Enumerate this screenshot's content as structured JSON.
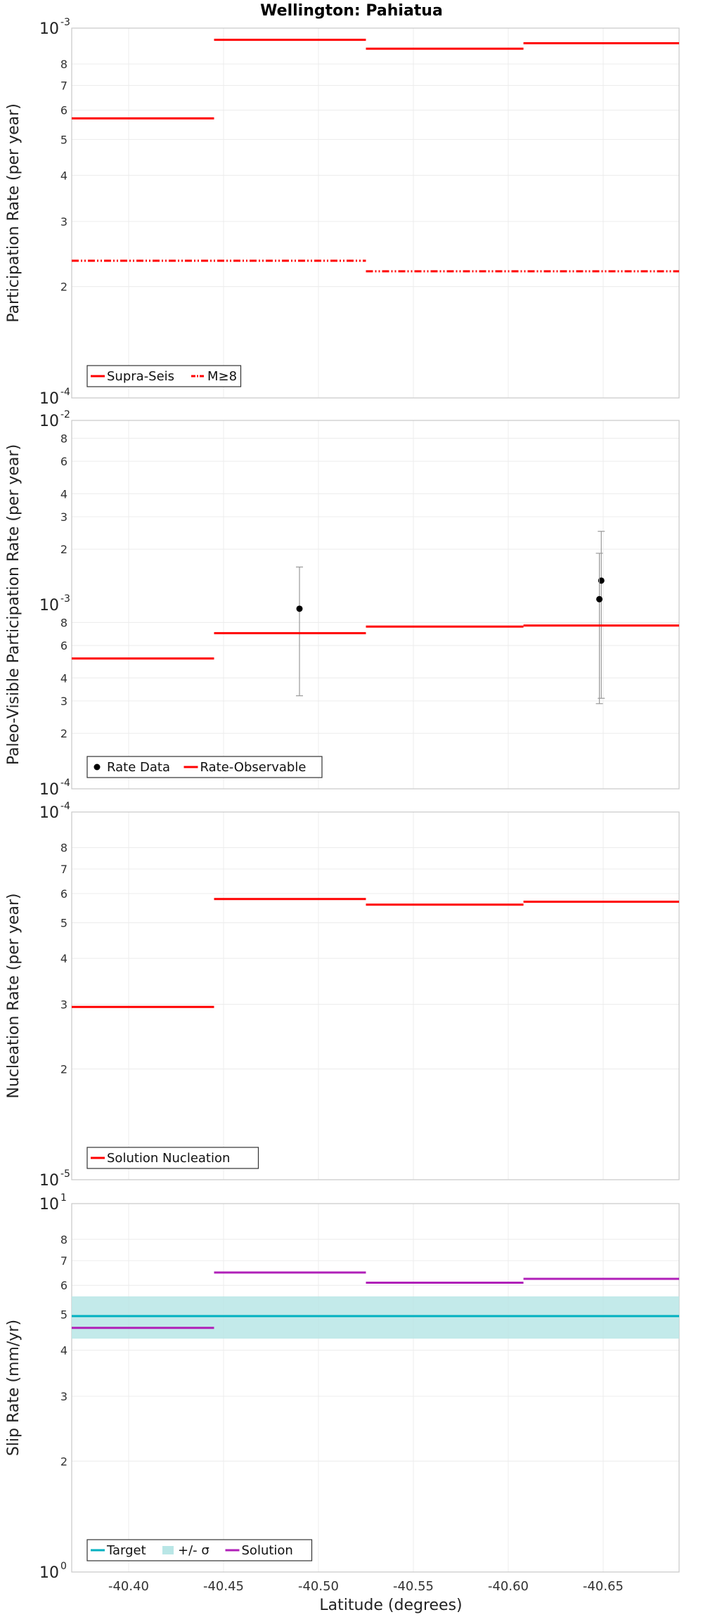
{
  "title": "Wellington: Pahiatua",
  "xlabel": "Latitude (degrees)",
  "colors": {
    "red": "#ff0000",
    "teal": "#00b0c0",
    "band": "#b9e6e6",
    "magenta": "#b020b8",
    "black": "#000000",
    "errorbar": "#999999"
  },
  "chart_data": [
    {
      "type": "line",
      "ylabel": "Participation Rate (per year)",
      "yscale": "log",
      "ylim": [
        0.0001,
        0.001
      ],
      "xlim": [
        -40.37,
        -40.69
      ],
      "xticks": [
        -40.4,
        -40.45,
        -40.5,
        -40.55,
        -40.6,
        -40.65
      ],
      "xtick_labels": [
        "-40.40",
        "-40.45",
        "-40.50",
        "-40.55",
        "-40.60",
        "-40.65"
      ],
      "ytick_major": [
        {
          "base": "10",
          "exp": "-3",
          "value": 0.001
        },
        {
          "base": "10",
          "exp": "-4",
          "value": 0.0001
        }
      ],
      "ytick_minor": [
        2,
        3,
        4,
        5,
        6,
        7,
        8
      ],
      "grid": true,
      "legend_position": "bottom-left",
      "series": [
        {
          "name": "Supra-Seis",
          "style": "solid",
          "color": "#ff0000",
          "segments": [
            {
              "x0": -40.37,
              "x1": -40.445,
              "y": 0.00057
            },
            {
              "x0": -40.445,
              "x1": -40.525,
              "y": 0.00093
            },
            {
              "x0": -40.525,
              "x1": -40.608,
              "y": 0.00088
            },
            {
              "x0": -40.608,
              "x1": -40.69,
              "y": 0.00091
            }
          ]
        },
        {
          "name": "M≥8",
          "style": "dashdotdot",
          "color": "#ff0000",
          "segments": [
            {
              "x0": -40.37,
              "x1": -40.525,
              "y": 0.000235
            },
            {
              "x0": -40.525,
              "x1": -40.69,
              "y": 0.00022
            }
          ]
        }
      ]
    },
    {
      "type": "line",
      "ylabel": "Paleo-Visible Participation Rate (per year)",
      "yscale": "log",
      "ylim": [
        0.0001,
        0.01
      ],
      "xlim": [
        -40.37,
        -40.69
      ],
      "xticks": [
        -40.4,
        -40.45,
        -40.5,
        -40.55,
        -40.6,
        -40.65
      ],
      "ytick_major": [
        {
          "base": "10",
          "exp": "-2",
          "value": 0.01
        },
        {
          "base": "10",
          "exp": "-3",
          "value": 0.001
        },
        {
          "base": "10",
          "exp": "-4",
          "value": 0.0001
        }
      ],
      "ytick_minor": [
        2,
        3,
        4,
        6,
        8
      ],
      "grid": true,
      "legend_position": "bottom-left",
      "series": [
        {
          "name": "Rate Data",
          "kind": "points",
          "color": "#000000",
          "points": [
            {
              "x": -40.49,
              "y": 0.00095,
              "lo": 0.00032,
              "hi": 0.0016
            },
            {
              "x": -40.649,
              "y": 0.00135,
              "lo": 0.00031,
              "hi": 0.0025
            },
            {
              "x": -40.648,
              "y": 0.00107,
              "lo": 0.00029,
              "hi": 0.0019
            }
          ]
        },
        {
          "name": "Rate-Observable",
          "style": "solid",
          "color": "#ff0000",
          "segments": [
            {
              "x0": -40.37,
              "x1": -40.445,
              "y": 0.00051
            },
            {
              "x0": -40.445,
              "x1": -40.525,
              "y": 0.0007
            },
            {
              "x0": -40.525,
              "x1": -40.608,
              "y": 0.00076
            },
            {
              "x0": -40.608,
              "x1": -40.69,
              "y": 0.00077
            }
          ]
        }
      ]
    },
    {
      "type": "line",
      "ylabel": "Nucleation Rate (per year)",
      "yscale": "log",
      "ylim": [
        1e-05,
        0.0001
      ],
      "xlim": [
        -40.37,
        -40.69
      ],
      "xticks": [
        -40.4,
        -40.45,
        -40.5,
        -40.55,
        -40.6,
        -40.65
      ],
      "ytick_major": [
        {
          "base": "10",
          "exp": "-4",
          "value": 0.0001
        },
        {
          "base": "10",
          "exp": "-5",
          "value": 1e-05
        }
      ],
      "ytick_minor": [
        2,
        3,
        4,
        5,
        6,
        7,
        8
      ],
      "grid": true,
      "legend_position": "bottom-left",
      "series": [
        {
          "name": "Solution Nucleation",
          "style": "solid",
          "color": "#ff0000",
          "segments": [
            {
              "x0": -40.37,
              "x1": -40.445,
              "y": 2.95e-05
            },
            {
              "x0": -40.445,
              "x1": -40.525,
              "y": 5.8e-05
            },
            {
              "x0": -40.525,
              "x1": -40.608,
              "y": 5.6e-05
            },
            {
              "x0": -40.608,
              "x1": -40.69,
              "y": 5.7e-05
            }
          ]
        }
      ]
    },
    {
      "type": "line",
      "ylabel": "Slip Rate (mm/yr)",
      "yscale": "log",
      "ylim": [
        1,
        10
      ],
      "xlim": [
        -40.37,
        -40.69
      ],
      "xticks": [
        -40.4,
        -40.45,
        -40.5,
        -40.55,
        -40.6,
        -40.65
      ],
      "ytick_major": [
        {
          "base": "10",
          "exp": "1",
          "value": 10
        },
        {
          "base": "10",
          "exp": "0",
          "value": 1
        }
      ],
      "ytick_minor": [
        2,
        3,
        4,
        5,
        6,
        7,
        8
      ],
      "grid": true,
      "legend_position": "bottom-left",
      "series": [
        {
          "name": "Target",
          "style": "solid",
          "color": "#00b0c0",
          "segments": [
            {
              "x0": -40.37,
              "x1": -40.69,
              "y": 4.95
            }
          ]
        },
        {
          "name": "+/- σ",
          "kind": "band",
          "color": "#b9e6e6",
          "band": {
            "x0": -40.37,
            "x1": -40.69,
            "lo": 4.3,
            "hi": 5.6
          }
        },
        {
          "name": "Solution",
          "style": "solid",
          "color": "#b020b8",
          "segments": [
            {
              "x0": -40.37,
              "x1": -40.445,
              "y": 4.6
            },
            {
              "x0": -40.445,
              "x1": -40.525,
              "y": 6.5
            },
            {
              "x0": -40.525,
              "x1": -40.608,
              "y": 6.1
            },
            {
              "x0": -40.608,
              "x1": -40.69,
              "y": 6.25
            }
          ]
        }
      ]
    }
  ]
}
